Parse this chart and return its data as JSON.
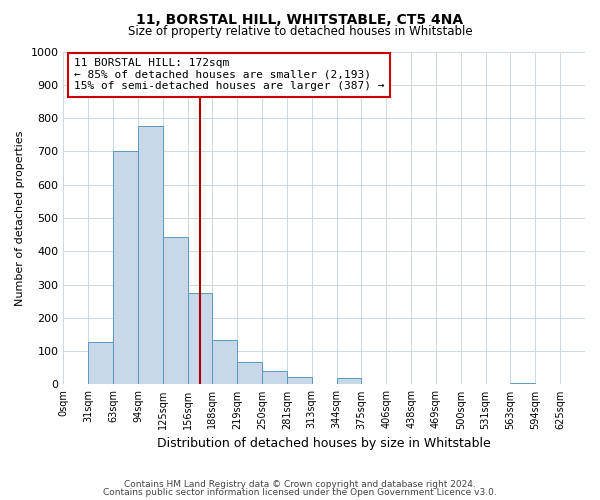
{
  "title": "11, BORSTAL HILL, WHITSTABLE, CT5 4NA",
  "subtitle": "Size of property relative to detached houses in Whitstable",
  "xlabel": "Distribution of detached houses by size in Whitstable",
  "ylabel": "Number of detached properties",
  "bin_labels": [
    "0sqm",
    "31sqm",
    "63sqm",
    "94sqm",
    "125sqm",
    "156sqm",
    "188sqm",
    "219sqm",
    "250sqm",
    "281sqm",
    "313sqm",
    "344sqm",
    "375sqm",
    "406sqm",
    "438sqm",
    "469sqm",
    "500sqm",
    "531sqm",
    "563sqm",
    "594sqm",
    "625sqm"
  ],
  "bar_values": [
    0,
    127,
    700,
    775,
    443,
    275,
    133,
    68,
    40,
    23,
    0,
    18,
    0,
    0,
    0,
    0,
    0,
    0,
    5,
    0,
    0
  ],
  "bar_color": "#c8d8e8",
  "bar_edge_color": "#5a9abf",
  "vline_color": "#aa0000",
  "annotation_text": "11 BORSTAL HILL: 172sqm\n← 85% of detached houses are smaller (2,193)\n15% of semi-detached houses are larger (387) →",
  "annotation_box_color": "#cc0000",
  "ylim": [
    0,
    1000
  ],
  "yticks": [
    0,
    100,
    200,
    300,
    400,
    500,
    600,
    700,
    800,
    900,
    1000
  ],
  "footer_line1": "Contains HM Land Registry data © Crown copyright and database right 2024.",
  "footer_line2": "Contains public sector information licensed under the Open Government Licence v3.0.",
  "background_color": "#ffffff",
  "grid_color": "#d0d8e0"
}
